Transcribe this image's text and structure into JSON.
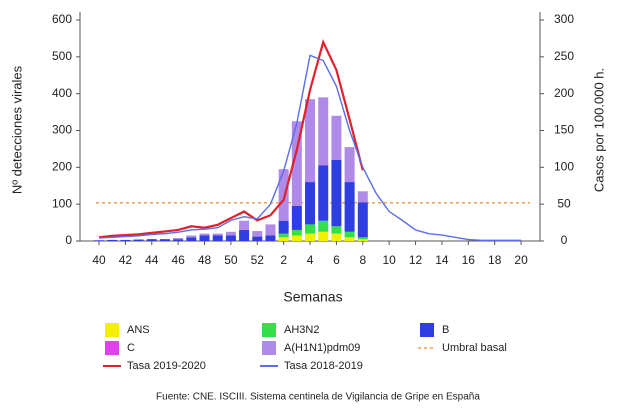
{
  "chart_data": {
    "type": "bar-line",
    "x_label": "Semanas",
    "y_label": "Nº detecciones virales",
    "y2_label": "Casos por 100.000 h.",
    "source": "Fuente: CNE. ISCIII. Sistema centinela de Vigilancia de Gripe en España",
    "categories": [
      "40",
      null,
      "42",
      null,
      "44",
      null,
      "46",
      null,
      "48",
      null,
      "50",
      null,
      "52",
      null,
      "2",
      null,
      "4",
      null,
      "6",
      null,
      "8",
      null,
      "10",
      null,
      "12",
      null,
      "14",
      null,
      "16",
      null,
      "18",
      null,
      "20"
    ],
    "ylim": [
      0,
      600
    ],
    "yticks": [
      0,
      100,
      200,
      300,
      400,
      500,
      600
    ],
    "y2lim": [
      0,
      300
    ],
    "y2ticks": [
      0,
      50,
      100,
      150,
      200,
      250,
      300
    ],
    "series": [
      {
        "name": "ANS",
        "color": "#f2f000",
        "kind": "bar",
        "values": [
          0,
          0,
          0,
          0,
          0,
          0,
          0,
          0,
          0,
          0,
          0,
          0,
          0,
          0,
          10,
          15,
          20,
          25,
          20,
          10,
          5,
          null,
          null,
          null,
          null,
          null,
          null,
          null,
          null,
          null,
          null,
          null,
          null
        ]
      },
      {
        "name": "AH3N2",
        "color": "#33e04a",
        "kind": "bar",
        "values": [
          0,
          0,
          0,
          0,
          0,
          0,
          0,
          0,
          0,
          0,
          0,
          0,
          0,
          0,
          10,
          15,
          25,
          30,
          20,
          15,
          5,
          null,
          null,
          null,
          null,
          null,
          null,
          null,
          null,
          null,
          null,
          null,
          null
        ]
      },
      {
        "name": "C",
        "color": "#e040f0",
        "kind": "bar",
        "values": [
          0,
          0,
          0,
          0,
          0,
          0,
          0,
          0,
          0,
          0,
          0,
          0,
          0,
          0,
          0,
          0,
          0,
          0,
          0,
          0,
          0,
          null,
          null,
          null,
          null,
          null,
          null,
          null,
          null,
          null,
          null,
          null,
          null
        ]
      },
      {
        "name": "B",
        "color": "#2f3ee0",
        "kind": "bar",
        "values": [
          2,
          3,
          3,
          4,
          5,
          5,
          5,
          10,
          15,
          15,
          15,
          30,
          12,
          15,
          35,
          65,
          115,
          150,
          180,
          135,
          95,
          null,
          null,
          null,
          null,
          null,
          null,
          null,
          null,
          null,
          null,
          null,
          null
        ]
      },
      {
        "name": "A(H1N1)pdm09",
        "color": "#b08ae8",
        "kind": "bar",
        "values": [
          0,
          0,
          0,
          0,
          0,
          0,
          3,
          5,
          5,
          5,
          10,
          25,
          15,
          30,
          140,
          230,
          225,
          185,
          120,
          95,
          30,
          null,
          null,
          null,
          null,
          null,
          null,
          null,
          null,
          null,
          null,
          null,
          null
        ]
      },
      {
        "name": "Tasa 2019-2020",
        "color": "#e0202a",
        "kind": "line",
        "axis": "y2",
        "values": [
          5,
          7,
          8,
          9,
          11,
          13,
          15,
          20,
          18,
          22,
          31,
          40,
          28,
          35,
          56,
          124,
          205,
          270,
          232,
          165,
          96,
          null,
          null,
          null,
          null,
          null,
          null,
          null,
          null,
          null,
          null,
          null,
          null
        ]
      },
      {
        "name": "Tasa 2018-2019",
        "color": "#5a6ee8",
        "kind": "line",
        "axis": "y2",
        "values": [
          4,
          5,
          6,
          7,
          9,
          10,
          12,
          15,
          16,
          18,
          28,
          33,
          30,
          50,
          95,
          160,
          252,
          245,
          210,
          150,
          100,
          65,
          40,
          28,
          15,
          10,
          8,
          5,
          2,
          1,
          1,
          1,
          1
        ]
      }
    ],
    "threshold": {
      "name": "Umbral basal",
      "value": 52,
      "axis": "y2",
      "color": "#f0a050"
    }
  }
}
